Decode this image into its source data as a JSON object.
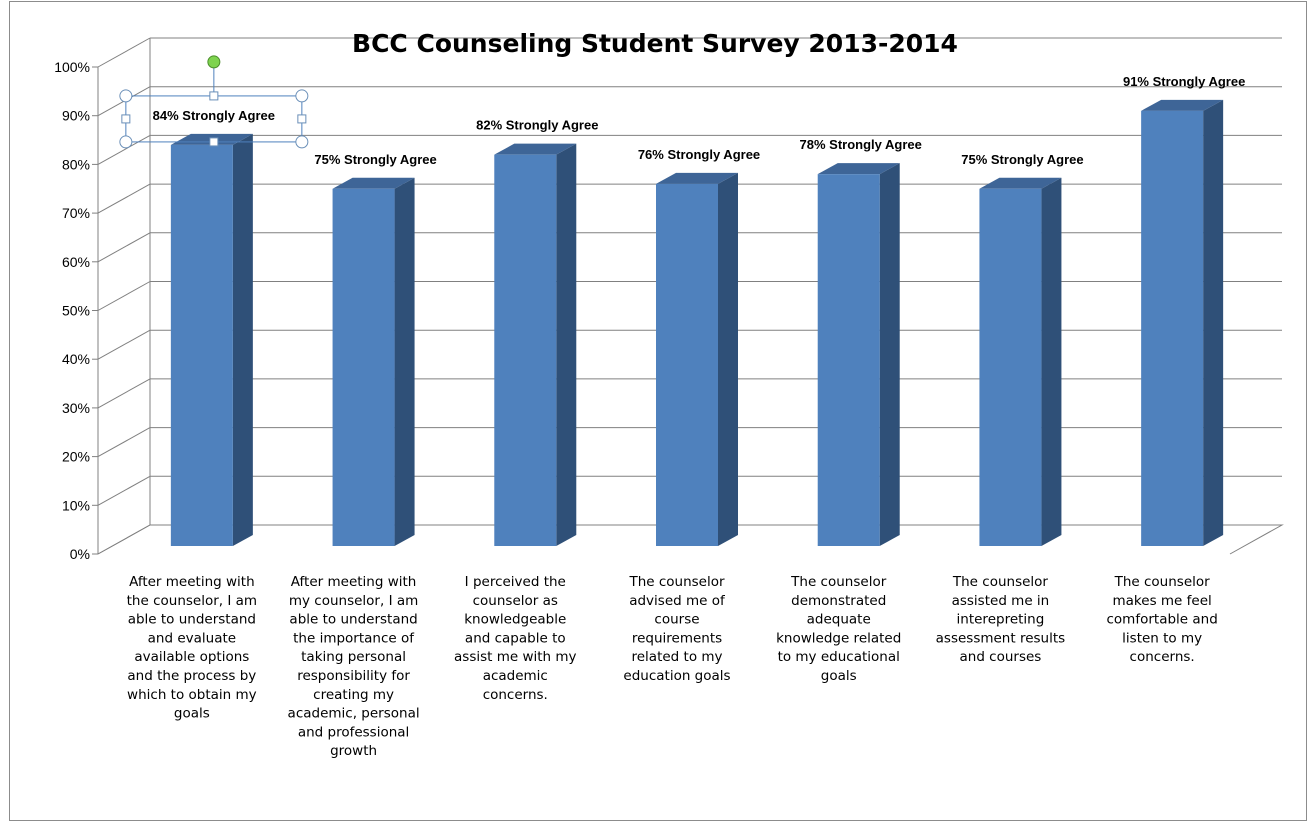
{
  "chart_data": {
    "type": "bar",
    "title": "BCC Counseling Student Survey 2013-2014",
    "xlabel": "",
    "ylabel": "",
    "ylim": [
      0,
      100
    ],
    "y_ticks": [
      "0%",
      "10%",
      "20%",
      "30%",
      "40%",
      "50%",
      "60%",
      "70%",
      "80%",
      "90%",
      "100%"
    ],
    "grid": true,
    "three_d": true,
    "bar_color": "#4f81bd",
    "bar_side_color": "#2f5078",
    "bar_top_color": "#3e6597",
    "categories": [
      "After meeting with the counselor, I am able to understand and evaluate available options and the process by which to obtain my goals",
      "After meeting with my counselor, I am able to understand the importance of taking personal responsibility for creating my academic, personal and professional growth",
      "I perceived the counselor as knowledgeable and capable to assist me with my academic concerns.",
      "The counselor advised me of course requirements related to my education goals",
      "The counselor demonstrated adequate knowledge related to my educational goals",
      "The counselor assisted me in interepreting assessment results and courses",
      "The counselor makes me feel comfortable and listen to my concerns."
    ],
    "category_lines": [
      [
        "After meeting with",
        "the counselor, I am",
        "able to understand",
        "and evaluate",
        "available options",
        "and the process by",
        "which to obtain my",
        "goals"
      ],
      [
        "After meeting with",
        "my counselor, I am",
        "able to understand",
        "the importance of",
        "taking personal",
        "responsibility for",
        "creating my",
        "academic, personal",
        "and professional",
        "growth"
      ],
      [
        "I perceived the",
        "counselor as",
        "knowledgeable",
        "and capable to",
        "assist me with my",
        "academic",
        "concerns."
      ],
      [
        "The counselor",
        "advised me of",
        "course",
        "requirements",
        "related to my",
        "education goals"
      ],
      [
        "The counselor",
        "demonstrated",
        "adequate",
        "knowledge related",
        "to my educational",
        "goals"
      ],
      [
        "The counselor",
        "assisted me in",
        "interepreting",
        "assessment results",
        "and courses"
      ],
      [
        "The counselor",
        "makes me feel",
        "comfortable and",
        "listen to my",
        "concerns."
      ]
    ],
    "values": [
      84,
      75,
      82,
      76,
      78,
      75,
      91
    ],
    "data_labels": [
      "84% Strongly Agree",
      "75% Strongly Agree",
      "82% Strongly Agree",
      "76% Strongly Agree",
      "78% Strongly Agree",
      "75% Strongly Agree",
      "91% Strongly Agree"
    ],
    "selected_label_index": 0
  }
}
